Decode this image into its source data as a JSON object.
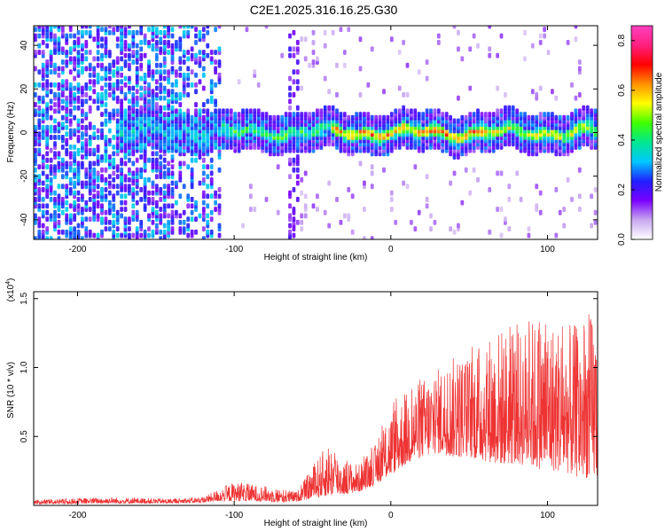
{
  "title": "C2E1.2025.316.16.25.G30",
  "chart_data": [
    {
      "type": "heatmap",
      "name": "spectrogram",
      "xlabel": "Height of straight line (km)",
      "ylabel": "Frequency (Hz)",
      "xlim": [
        -228,
        132
      ],
      "ylim": [
        -49,
        49
      ],
      "x_ticks": [
        -200,
        -100,
        0,
        100
      ],
      "y_ticks": [
        -40,
        -20,
        0,
        20,
        40
      ],
      "colorbar": {
        "label": "Normalized spectral amplitude",
        "range": [
          0,
          0.86
        ],
        "ticks": [
          0.0,
          0.2,
          0.4,
          0.6,
          0.8
        ],
        "colors": [
          "#ffffff",
          "#c8a8f0",
          "#7a00ff",
          "#2020ff",
          "#00c8ff",
          "#00e890",
          "#40ff00",
          "#ffff00",
          "#ff9000",
          "#ff0000",
          "#ff2080",
          "#ff40c0"
        ]
      },
      "features": {
        "noise_region_km": [
          -228,
          -110
        ],
        "secondary_noise_km": [
          -67,
          -60
        ],
        "signal_band_hz": [
          -8,
          8
        ],
        "signal_start_km": -175,
        "peak_amplitude_km": [
          -30,
          60
        ]
      }
    },
    {
      "type": "line",
      "name": "snr",
      "xlabel": "Height of straight line (km)",
      "ylabel": "SNR (10 * v/v)",
      "scale_label": "(x10",
      "scale_exp": "4",
      "scale_close": ")",
      "xlim": [
        -228,
        132
      ],
      "ylim": [
        0,
        1.55
      ],
      "x_ticks": [
        -200,
        -100,
        0,
        100
      ],
      "y_ticks": [
        0.5,
        1.0,
        1.5
      ],
      "color": "#ee3333",
      "envelope": {
        "x": [
          -228,
          -180,
          -140,
          -120,
          -110,
          -100,
          -80,
          -70,
          -60,
          -50,
          -40,
          -30,
          -20,
          -10,
          0,
          10,
          20,
          30,
          40,
          50,
          60,
          70,
          80,
          90,
          100,
          110,
          120,
          130
        ],
        "upper": [
          0.04,
          0.06,
          0.05,
          0.06,
          0.12,
          0.17,
          0.14,
          0.12,
          0.1,
          0.28,
          0.46,
          0.33,
          0.3,
          0.44,
          0.7,
          0.82,
          0.92,
          1.0,
          1.08,
          1.1,
          1.22,
          1.3,
          1.25,
          1.35,
          1.38,
          1.3,
          1.32,
          1.4
        ],
        "lower": [
          0.01,
          0.015,
          0.015,
          0.02,
          0.03,
          0.03,
          0.03,
          0.02,
          0.03,
          0.05,
          0.07,
          0.08,
          0.1,
          0.15,
          0.22,
          0.3,
          0.35,
          0.38,
          0.35,
          0.35,
          0.32,
          0.3,
          0.3,
          0.28,
          0.25,
          0.25,
          0.2,
          0.2
        ]
      }
    }
  ]
}
